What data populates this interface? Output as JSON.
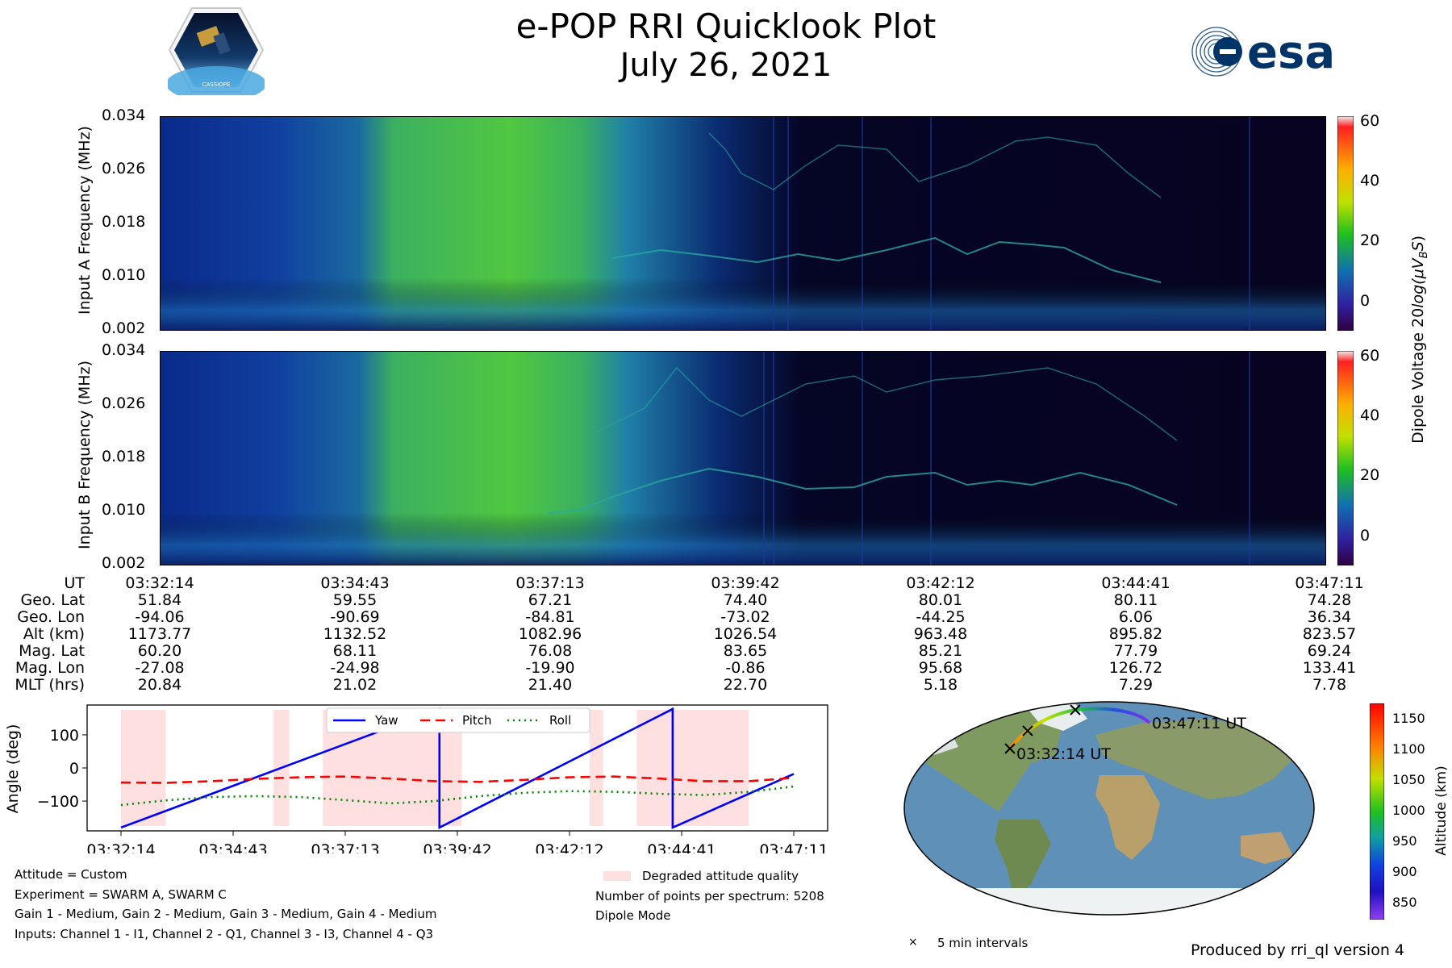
{
  "header": {
    "title": "e-POP RRI Quicklook Plot",
    "date": "July 26, 2021",
    "cassiope_logo_text": "CASSIOPE",
    "esa_logo_text": "esa"
  },
  "spectrogram_a": {
    "ylabel": "Input A Frequency (MHz)",
    "yticks": [
      "0.034",
      "0.026",
      "0.018",
      "0.010",
      "0.002"
    ]
  },
  "spectrogram_b": {
    "ylabel": "Input B Frequency (MHz)",
    "yticks": [
      "0.034",
      "0.026",
      "0.018",
      "0.010",
      "0.002"
    ]
  },
  "colorbar_voltage": {
    "label_main": "Dipole Voltage 20",
    "label_log": "log(μV",
    "label_sub": "B",
    "label_end": "S",
    "label_close": ")",
    "ticks": [
      "60",
      "40",
      "20",
      "0"
    ]
  },
  "ephemeris": {
    "row_labels": [
      "UT",
      "Geo. Lat",
      "Geo. Lon",
      "Alt (km)",
      "Mag. Lat",
      "Mag. Lon",
      "MLT (hrs)"
    ],
    "columns": [
      [
        "03:32:14",
        "51.84",
        "-94.06",
        "1173.77",
        "60.20",
        "-27.08",
        "20.84"
      ],
      [
        "03:34:43",
        "59.55",
        "-90.69",
        "1132.52",
        "68.11",
        "-24.98",
        "21.02"
      ],
      [
        "03:37:13",
        "67.21",
        "-84.81",
        "1082.96",
        "76.08",
        "-19.90",
        "21.40"
      ],
      [
        "03:39:42",
        "74.40",
        "-73.02",
        "1026.54",
        "83.65",
        "-0.86",
        "22.70"
      ],
      [
        "03:42:12",
        "80.01",
        "-44.25",
        "963.48",
        "85.21",
        "95.68",
        "5.18"
      ],
      [
        "03:44:41",
        "80.11",
        "6.06",
        "895.82",
        "77.79",
        "126.72",
        "7.29"
      ],
      [
        "03:47:11",
        "74.28",
        "36.34",
        "823.57",
        "69.24",
        "133.41",
        "7.78"
      ]
    ]
  },
  "chart_data": {
    "type": "line",
    "title": "",
    "xlabel": "",
    "ylabel": "Angle (deg)",
    "x_ticks": [
      "03:32:14",
      "03:34:43",
      "03:37:13",
      "03:39:42",
      "03:42:12",
      "03:44:41",
      "03:47:11"
    ],
    "x_range_min": [
      0,
      15
    ],
    "ylim": [
      -190,
      190
    ],
    "y_ticks": [
      100,
      0,
      -100
    ],
    "y_tick_labels": [
      "100",
      "0",
      "−100"
    ],
    "legend": [
      "Yaw",
      "Pitch",
      "Roll"
    ],
    "series": [
      {
        "name": "Yaw",
        "color": "#0000ff",
        "style": "solid",
        "x": [
          0,
          7.1,
          7.1,
          12.3,
          12.3,
          15
        ],
        "y": [
          -180,
          178,
          -180,
          178,
          -180,
          -18
        ]
      },
      {
        "name": "Pitch",
        "color": "#ff0000",
        "style": "dashed",
        "x": [
          0,
          1,
          2,
          3,
          4,
          5,
          6,
          7,
          8,
          9,
          10,
          11,
          12,
          13,
          14,
          15
        ],
        "y": [
          -44,
          -45,
          -40,
          -33,
          -28,
          -26,
          -32,
          -40,
          -42,
          -36,
          -28,
          -26,
          -32,
          -40,
          -40,
          -30
        ]
      },
      {
        "name": "Roll",
        "color": "#008000",
        "style": "dotted",
        "x": [
          0,
          1,
          2,
          3,
          4,
          5,
          6,
          7,
          8,
          9,
          10,
          11,
          12,
          13,
          14,
          15
        ],
        "y": [
          -112,
          -98,
          -88,
          -85,
          -88,
          -97,
          -107,
          -100,
          -85,
          -75,
          -70,
          -72,
          -78,
          -82,
          -72,
          -56
        ]
      }
    ],
    "degraded_intervals": [
      [
        0,
        1.0
      ],
      [
        3.4,
        3.75
      ],
      [
        4.5,
        7.6
      ],
      [
        10.45,
        10.75
      ],
      [
        11.5,
        14.0
      ]
    ],
    "degraded_label": "Degraded attitude quality"
  },
  "notes_left": [
    "Attitude = Custom",
    "Experiment = SWARM A, SWARM C",
    "Gain 1 - Medium, Gain 2 - Medium, Gain 3 - Medium, Gain 4 - Medium",
    "Inputs: Channel 1 - I1, Channel 2 - Q1, Channel 3 - I3, Channel 4 - Q3"
  ],
  "notes_right": [
    "Number of points per spectrum: 5208",
    "Dipole Mode"
  ],
  "map": {
    "start_label": "03:32:14 UT",
    "end_label": "03:47:11 UT",
    "marker_legend": "5 min intervals",
    "colorbar_label": "Altitude (km)",
    "colorbar_ticks": [
      "1150",
      "1100",
      "1050",
      "1000",
      "950",
      "900",
      "850"
    ]
  },
  "footer": {
    "produced_by": "Produced by rri_ql version 4"
  },
  "colors": {
    "degraded": "#ffe0e0",
    "spectrogram_bg": "#050018"
  }
}
